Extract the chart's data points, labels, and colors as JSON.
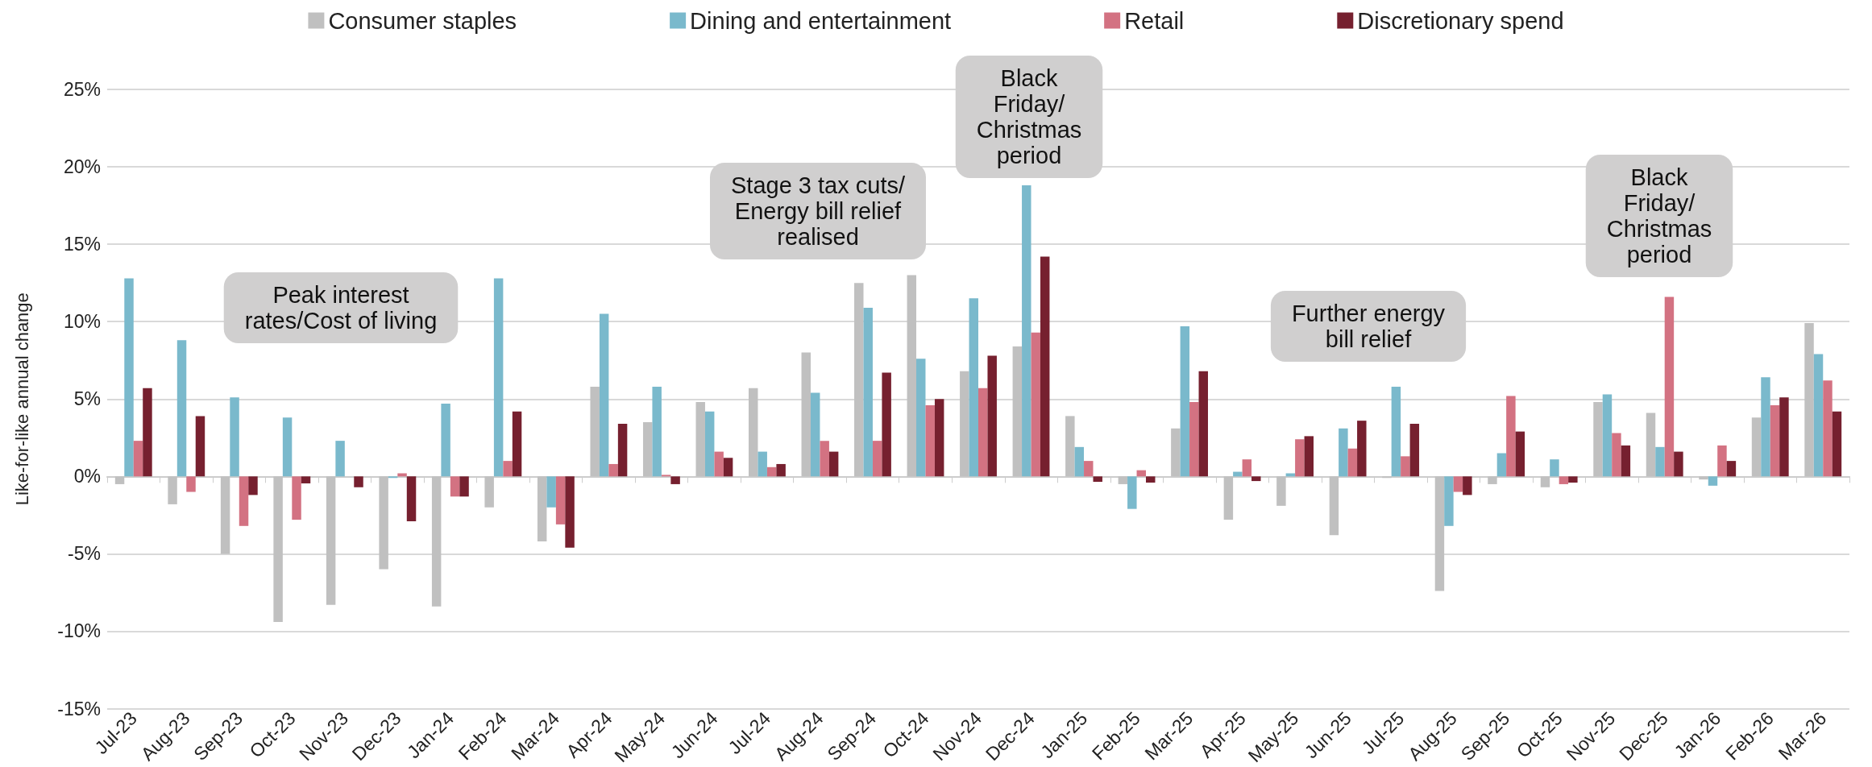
{
  "chart_data": {
    "type": "bar",
    "ylabel": "Like-for-like annual change",
    "categories": [
      "Jul-23",
      "Aug-23",
      "Sep-23",
      "Oct-23",
      "Nov-23",
      "Dec-23",
      "Jan-24",
      "Feb-24",
      "Mar-24",
      "Apr-24",
      "May-24",
      "Jun-24",
      "Jul-24",
      "Aug-24",
      "Sep-24",
      "Oct-24",
      "Nov-24",
      "Dec-24",
      "Jan-25",
      "Feb-25",
      "Mar-25",
      "Apr-25",
      "May-25",
      "Jun-25",
      "Jul-25",
      "Aug-25",
      "Sep-25",
      "Oct-25",
      "Nov-25",
      "Dec-25",
      "Jan-26",
      "Feb-26",
      "Mar-26"
    ],
    "series": [
      {
        "name": "Consumer staples",
        "color": "#c0c0c0",
        "values": [
          -0.5,
          -1.8,
          -5.0,
          -9.4,
          -8.3,
          -6.0,
          -8.4,
          -2.0,
          -4.2,
          5.8,
          3.5,
          4.8,
          5.7,
          8.0,
          12.5,
          13.0,
          6.8,
          8.4,
          3.9,
          -0.5,
          3.1,
          -2.8,
          -1.9,
          -3.8,
          -0.1,
          -7.4,
          -0.5,
          -0.7,
          4.8,
          4.1,
          -0.2,
          3.8,
          9.9
        ]
      },
      {
        "name": "Dining and entertainment",
        "color": "#7ab9cc",
        "values": [
          12.8,
          8.8,
          5.1,
          3.8,
          2.3,
          -0.1,
          4.7,
          12.8,
          -2.0,
          10.5,
          5.8,
          4.2,
          1.6,
          5.4,
          10.9,
          7.6,
          11.5,
          18.8,
          1.9,
          -2.1,
          9.7,
          0.3,
          0.2,
          3.1,
          5.8,
          -3.2,
          1.5,
          1.1,
          5.3,
          1.9,
          -0.6,
          6.4,
          7.9
        ]
      },
      {
        "name": "Retail",
        "color": "#d37282",
        "values": [
          2.3,
          -1.0,
          -3.2,
          -2.8,
          0.0,
          0.2,
          -1.3,
          1.0,
          -3.1,
          0.8,
          0.1,
          1.6,
          0.6,
          2.3,
          2.3,
          4.6,
          5.7,
          9.3,
          1.0,
          0.4,
          4.8,
          1.1,
          2.4,
          1.8,
          1.3,
          -1.0,
          5.2,
          -0.5,
          2.8,
          11.6,
          2.0,
          4.6,
          6.2
        ]
      },
      {
        "name": "Discretionary spend",
        "color": "#76202f",
        "values": [
          5.7,
          3.9,
          -1.2,
          -0.45,
          -0.7,
          -2.9,
          -1.3,
          4.2,
          -4.6,
          3.4,
          -0.5,
          1.2,
          0.8,
          1.6,
          6.7,
          5.0,
          7.8,
          14.2,
          -0.35,
          -0.4,
          6.8,
          -0.3,
          2.6,
          3.6,
          3.4,
          -1.2,
          2.9,
          -0.4,
          2.0,
          1.6,
          1.0,
          5.1,
          4.2
        ]
      }
    ],
    "ylim": [
      -15,
      25
    ],
    "yticks": [
      {
        "value": -15,
        "label": "-15%"
      },
      {
        "value": -10,
        "label": "-10%"
      },
      {
        "value": -5,
        "label": "-5%"
      },
      {
        "value": 0,
        "label": "0%"
      },
      {
        "value": 5,
        "label": "5%"
      },
      {
        "value": 10,
        "label": "10%"
      },
      {
        "value": 15,
        "label": "15%"
      },
      {
        "value": 20,
        "label": "20%"
      },
      {
        "value": 25,
        "label": "25%"
      }
    ],
    "grid": "y",
    "legend": "top",
    "annotations": [
      "Peak interest\nrates/Cost of living",
      "Stage 3 tax cuts/\nEnergy bill relief\nrealised",
      "Black\nFriday/\nChristmas\nperiod",
      "Further energy\nbill relief",
      "Black\nFriday/\nChristmas\nperiod"
    ]
  }
}
